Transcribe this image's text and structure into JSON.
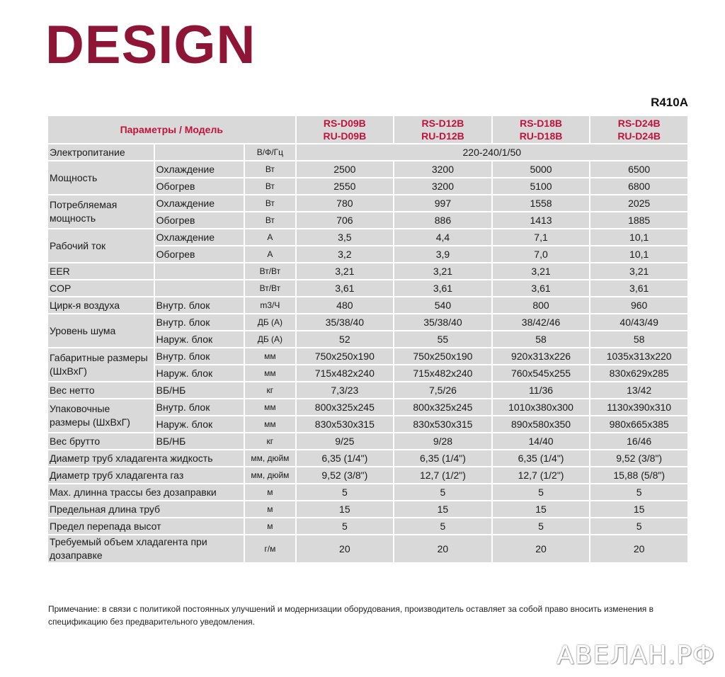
{
  "title": "DESIGN",
  "refrigerant": "R410A",
  "header": {
    "param_label": "Параметры / Модель",
    "models": [
      {
        "indoor": "RS-D09B",
        "outdoor": "RU-D09B"
      },
      {
        "indoor": "RS-D12B",
        "outdoor": "RU-D12B"
      },
      {
        "indoor": "RS-D18B",
        "outdoor": "RU-D18B"
      },
      {
        "indoor": "RS-D24B",
        "outdoor": "RU-D24B"
      }
    ]
  },
  "rows": {
    "power_supply": {
      "label": "Электропитание",
      "unit": "В/Ф/Гц",
      "value": "220-240/1/50"
    },
    "capacity": {
      "label": "Мощность",
      "cooling": {
        "sub": "Охлаждение",
        "unit": "Вт",
        "values": [
          "2500",
          "3200",
          "5000",
          "6500"
        ]
      },
      "heating": {
        "sub": "Обогрев",
        "unit": "Вт",
        "values": [
          "2550",
          "3200",
          "5100",
          "6800"
        ]
      }
    },
    "consumption": {
      "label": "Потребляемая мощность",
      "cooling": {
        "sub": "Охлаждение",
        "unit": "Вт",
        "values": [
          "780",
          "997",
          "1558",
          "2025"
        ]
      },
      "heating": {
        "sub": "Обогрев",
        "unit": "Вт",
        "values": [
          "706",
          "886",
          "1413",
          "1885"
        ]
      }
    },
    "current": {
      "label": "Рабочий ток",
      "cooling": {
        "sub": "Охлаждение",
        "unit": "А",
        "values": [
          "3,5",
          "4,4",
          "7,1",
          "10,1"
        ]
      },
      "heating": {
        "sub": "Обогрев",
        "unit": "А",
        "values": [
          "3,2",
          "3,9",
          "7,0",
          "10,1"
        ]
      }
    },
    "eer": {
      "label": "EER",
      "unit": "Вт/Вт",
      "values": [
        "3,21",
        "3,21",
        "3,21",
        "3,21"
      ]
    },
    "cop": {
      "label": "COP",
      "unit": "Вт/Вт",
      "values": [
        "3,61",
        "3,61",
        "3,61",
        "3,61"
      ]
    },
    "airflow": {
      "label": "Цирк-я воздуха",
      "sub": "Внутр. блок",
      "unit": "m3/Ч",
      "values": [
        "480",
        "540",
        "800",
        "960"
      ]
    },
    "noise": {
      "label": "Уровень шума",
      "indoor": {
        "sub": "Внутр. блок",
        "unit": "ДБ (А)",
        "values": [
          "35/38/40",
          "35/38/40",
          "38/42/46",
          "40/43/49"
        ]
      },
      "outdoor": {
        "sub": "Наруж. блок",
        "unit": "ДБ (А)",
        "values": [
          "52",
          "55",
          "58",
          "58"
        ]
      }
    },
    "dimensions": {
      "label": "Габаритные размеры (ШхВхГ)",
      "indoor": {
        "sub": "Внутр. блок",
        "unit": "мм",
        "values": [
          "750x250x190",
          "750x250x190",
          "920x313x226",
          "1035x313x220"
        ]
      },
      "outdoor": {
        "sub": "Наруж. блок",
        "unit": "мм",
        "values": [
          "715x482x240",
          "715x482x240",
          "760x545x255",
          "830x629x285"
        ]
      }
    },
    "net_weight": {
      "label": "Вес нетто",
      "sub": "ВБ/НБ",
      "unit": "кг",
      "values": [
        "7,3/23",
        "7,5/26",
        "11/36",
        "13/42"
      ]
    },
    "pack_dimensions": {
      "label": "Упаковочные размеры (ШхВхГ)",
      "indoor": {
        "sub": "Внутр. блок",
        "unit": "мм",
        "values": [
          "800x325x245",
          "800x325x245",
          "1010x380x300",
          "1130x390x310"
        ]
      },
      "outdoor": {
        "sub": "Наруж. блок",
        "unit": "мм",
        "values": [
          "830x530x315",
          "830x530x315",
          "890x580x350",
          "980x665x385"
        ]
      }
    },
    "gross_weight": {
      "label": "Вес брутто",
      "sub": "ВБ/НБ",
      "unit": "кг",
      "values": [
        "9/25",
        "9/28",
        "14/40",
        "16/46"
      ]
    },
    "pipe_liquid": {
      "label": "Диаметр труб хладагента жидкость",
      "unit": "мм, дюйм",
      "values": [
        "6,35 (1/4\")",
        "6,35 (1/4\")",
        "6,35 (1/4\")",
        "9,52 (3/8\")"
      ]
    },
    "pipe_gas": {
      "label": "Диаметр труб хладагента газ",
      "unit": "мм, дюйм",
      "values": [
        "9,52 (3/8\")",
        "12,7 (1/2\")",
        "12,7 (1/2\")",
        "15,88 (5/8\")"
      ]
    },
    "max_length_no_charge": {
      "label": "Max. длинна трассы без дозаправки",
      "unit": "м",
      "values": [
        "5",
        "5",
        "5",
        "5"
      ]
    },
    "max_pipe_length": {
      "label": "Предельная длина труб",
      "unit": "м",
      "values": [
        "15",
        "15",
        "15",
        "15"
      ]
    },
    "max_height_diff": {
      "label": "Предел перепада высот",
      "unit": "м",
      "values": [
        "5",
        "5",
        "5",
        "5"
      ]
    },
    "additional_charge": {
      "label": "Требуемый объем хладагента при дозаправке",
      "unit": "г/м",
      "values": [
        "20",
        "20",
        "20",
        "20"
      ]
    }
  },
  "note": "Примечание: в связи с политикой постоянных улучшений и модернизации оборудования, производитель оставляет за собой право вносить изменения в спецификацию без предварительного уведомления.",
  "watermark": "АВЕЛАН.РФ"
}
